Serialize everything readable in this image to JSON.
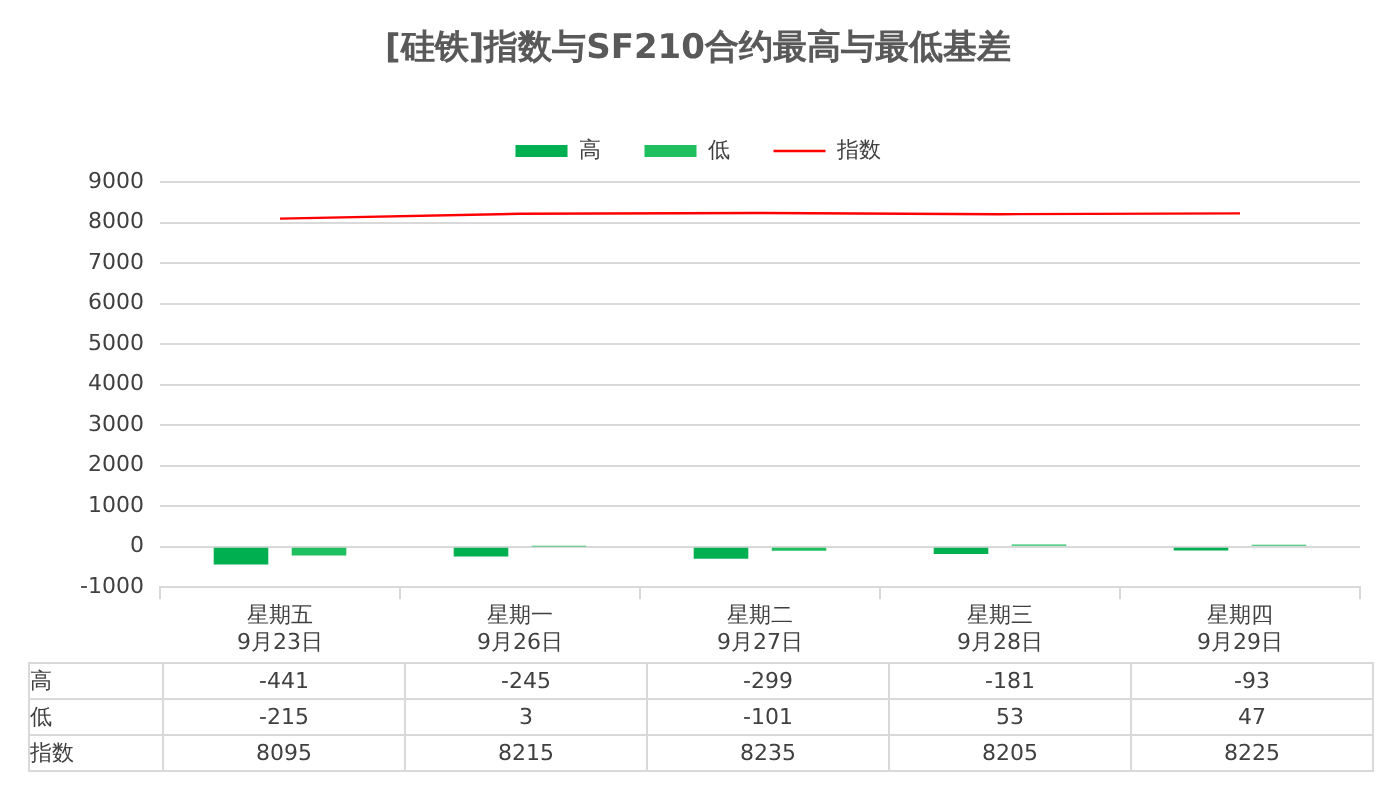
{
  "chart_data": {
    "type": "bar",
    "title": "[硅铁]指数与SF210合约最高与最低基差",
    "categories": [
      "星期五\n9月23日",
      "星期一\n9月26日",
      "星期二\n9月27日",
      "星期三\n9月28日",
      "星期四\n9月29日"
    ],
    "series": [
      {
        "name": "高",
        "color": "#00b050",
        "values": [
          -441,
          -245,
          -299,
          -181,
          -93
        ]
      },
      {
        "name": "低",
        "color": "#1fbf5f",
        "values": [
          -215,
          3,
          -101,
          53,
          47
        ]
      },
      {
        "name": "指数",
        "type": "line",
        "color": "#ff0000",
        "values": [
          8095,
          8215,
          8235,
          8205,
          8225
        ]
      }
    ],
    "ylim": [
      -1000,
      9000
    ],
    "yticks": [
      -1000,
      0,
      1000,
      2000,
      3000,
      4000,
      5000,
      6000,
      7000,
      8000,
      9000
    ],
    "grid": "y",
    "legend": "top",
    "data_labels": true,
    "marker": "none"
  }
}
